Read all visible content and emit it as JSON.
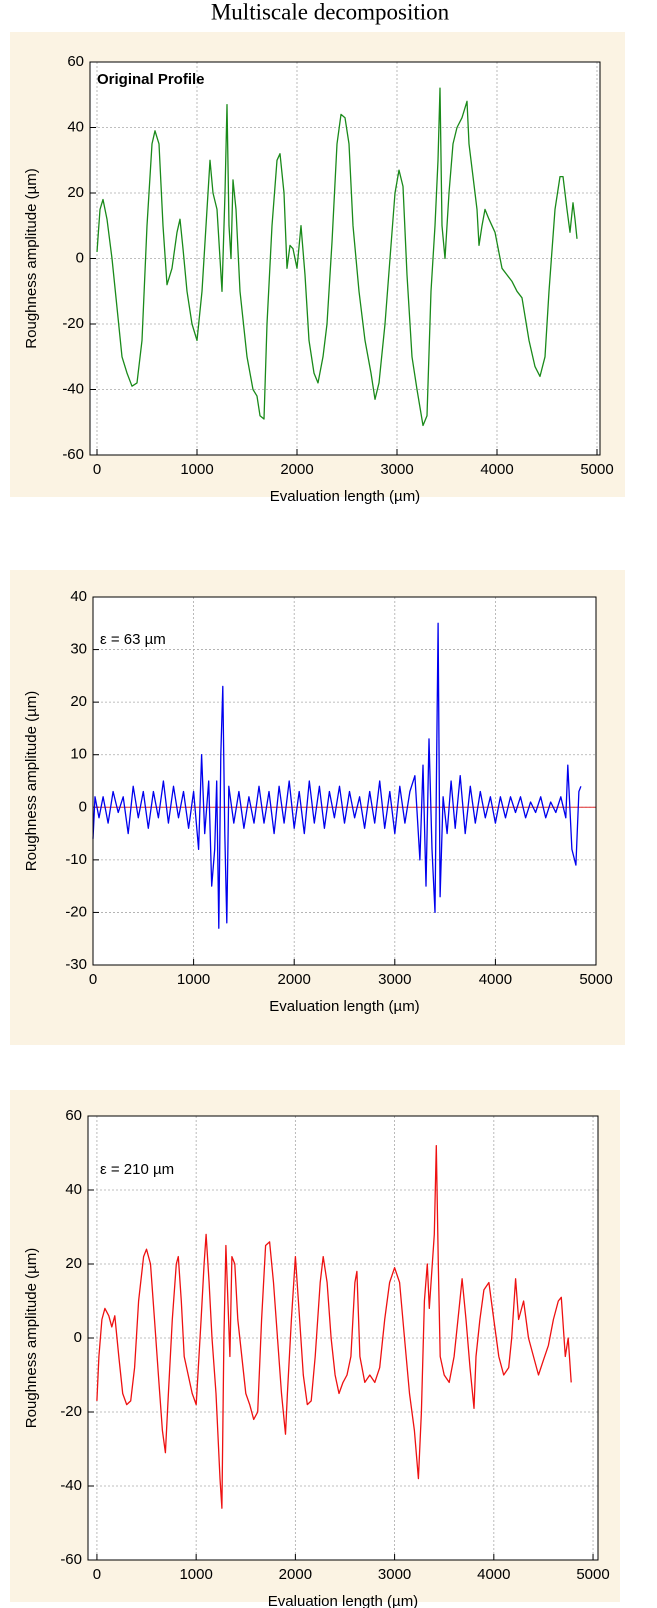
{
  "title": "Multiscale decomposition",
  "chart_data": [
    {
      "type": "line",
      "annotation": "Original Profile",
      "xlabel": "Evaluation length (µm)",
      "ylabel": "Roughness amplitude (µm)",
      "color": "#1a8a1a",
      "grid": true,
      "xlim": [
        -70,
        5030
      ],
      "ylim": [
        -60,
        60
      ],
      "xticks": [
        0,
        1000,
        2000,
        3000,
        4000,
        5000
      ],
      "yticks": [
        -60,
        -40,
        -20,
        0,
        20,
        40,
        60
      ],
      "x": [
        0,
        30,
        60,
        100,
        150,
        200,
        250,
        300,
        350,
        400,
        450,
        500,
        550,
        580,
        620,
        660,
        700,
        750,
        800,
        830,
        860,
        900,
        950,
        1000,
        1050,
        1100,
        1130,
        1160,
        1200,
        1250,
        1280,
        1300,
        1320,
        1340,
        1360,
        1390,
        1430,
        1500,
        1560,
        1600,
        1630,
        1670,
        1700,
        1750,
        1800,
        1830,
        1870,
        1900,
        1930,
        1960,
        2000,
        2040,
        2080,
        2120,
        2170,
        2210,
        2260,
        2300,
        2350,
        2400,
        2440,
        2480,
        2520,
        2560,
        2620,
        2680,
        2740,
        2780,
        2820,
        2880,
        2930,
        2980,
        3020,
        3060,
        3100,
        3150,
        3200,
        3260,
        3300,
        3340,
        3380,
        3410,
        3430,
        3450,
        3480,
        3520,
        3560,
        3600,
        3650,
        3700,
        3720,
        3760,
        3800,
        3820,
        3850,
        3880,
        3920,
        3980,
        4050,
        4100,
        4150,
        4200,
        4250,
        4320,
        4380,
        4430,
        4480,
        4520,
        4580,
        4630,
        4660,
        4700,
        4730,
        4760,
        4780,
        4800
      ],
      "values": [
        2,
        15,
        18,
        12,
        0,
        -15,
        -30,
        -35,
        -39,
        -38,
        -25,
        10,
        35,
        39,
        35,
        10,
        -8,
        -3,
        8,
        12,
        3,
        -10,
        -20,
        -25,
        -10,
        15,
        30,
        20,
        15,
        -10,
        20,
        47,
        10,
        0,
        24,
        15,
        -10,
        -30,
        -40,
        -42,
        -48,
        -49,
        -20,
        10,
        30,
        32,
        20,
        -3,
        4,
        3,
        -3,
        10,
        -5,
        -25,
        -35,
        -38,
        -30,
        -20,
        5,
        35,
        44,
        43,
        35,
        10,
        -10,
        -25,
        -35,
        -43,
        -38,
        -20,
        0,
        20,
        27,
        22,
        -5,
        -30,
        -40,
        -51,
        -48,
        -10,
        10,
        30,
        52,
        10,
        0,
        20,
        35,
        40,
        43,
        48,
        35,
        25,
        15,
        4,
        10,
        15,
        12,
        8,
        -3,
        -5,
        -7,
        -10,
        -12,
        -25,
        -33,
        -36,
        -30,
        -10,
        15,
        25,
        25,
        15,
        8,
        17,
        12,
        6
      ]
    },
    {
      "type": "line",
      "annotation": "ε = 63 µm",
      "xlabel": "Evaluation length (µm)",
      "ylabel": "Roughness amplitude (µm)",
      "color": "#0000ee",
      "grid": true,
      "hline": 0,
      "hline_color": "#e03030",
      "xlim": [
        0,
        5000
      ],
      "ylim": [
        -30,
        40
      ],
      "xticks": [
        0,
        1000,
        2000,
        3000,
        4000,
        5000
      ],
      "yticks": [
        -30,
        -20,
        -10,
        0,
        10,
        20,
        30,
        40
      ],
      "x": [
        0,
        20,
        60,
        100,
        150,
        200,
        250,
        300,
        350,
        400,
        450,
        500,
        550,
        600,
        650,
        700,
        750,
        800,
        850,
        900,
        950,
        1000,
        1050,
        1080,
        1110,
        1150,
        1180,
        1210,
        1230,
        1250,
        1270,
        1290,
        1310,
        1330,
        1350,
        1400,
        1450,
        1500,
        1550,
        1600,
        1650,
        1700,
        1750,
        1800,
        1850,
        1900,
        1950,
        2000,
        2050,
        2100,
        2150,
        2200,
        2250,
        2300,
        2350,
        2400,
        2450,
        2500,
        2550,
        2600,
        2650,
        2700,
        2750,
        2800,
        2850,
        2900,
        2950,
        3000,
        3050,
        3100,
        3150,
        3200,
        3250,
        3280,
        3310,
        3340,
        3370,
        3400,
        3430,
        3450,
        3480,
        3520,
        3560,
        3600,
        3650,
        3700,
        3750,
        3800,
        3850,
        3900,
        3950,
        4000,
        4050,
        4100,
        4150,
        4200,
        4250,
        4300,
        4350,
        4400,
        4450,
        4500,
        4550,
        4600,
        4650,
        4700,
        4720,
        4760,
        4800,
        4830,
        4850
      ],
      "values": [
        -6,
        2,
        -2,
        2,
        -3,
        3,
        -1,
        2,
        -5,
        4,
        -2,
        3,
        -4,
        3,
        -2,
        5,
        -3,
        4,
        -2,
        3,
        -4,
        3,
        -8,
        10,
        -5,
        5,
        -15,
        -8,
        5,
        -23,
        10,
        23,
        -5,
        -22,
        4,
        -3,
        3,
        -4,
        2,
        -3,
        4,
        -3,
        3,
        -5,
        4,
        -3,
        5,
        -4,
        3,
        -5,
        5,
        -3,
        4,
        -4,
        3,
        -2,
        4,
        -3,
        3,
        -2,
        2,
        -4,
        3,
        -3,
        5,
        -4,
        3,
        -5,
        4,
        -3,
        3,
        6,
        -10,
        8,
        -15,
        13,
        -8,
        -20,
        35,
        -17,
        2,
        -5,
        5,
        -4,
        6,
        -5,
        4,
        -3,
        3,
        -2,
        2,
        -3,
        2,
        -2,
        2,
        -1,
        2,
        -2,
        1,
        -1,
        2,
        -2,
        1,
        -1,
        2,
        -2,
        8,
        -8,
        -11,
        3,
        4
      ]
    },
    {
      "type": "line",
      "annotation": "ε = 210 µm",
      "xlabel": "Evaluation length (µm)",
      "ylabel": "Roughness amplitude (µm)",
      "color": "#ee1111",
      "grid": true,
      "xlim": [
        -90,
        5050
      ],
      "ylim": [
        -60,
        60
      ],
      "xticks": [
        0,
        1000,
        2000,
        3000,
        4000,
        5000
      ],
      "yticks": [
        -60,
        -40,
        -20,
        0,
        20,
        40,
        60
      ],
      "x": [
        0,
        20,
        50,
        80,
        120,
        150,
        180,
        220,
        260,
        300,
        340,
        380,
        420,
        470,
        500,
        540,
        580,
        620,
        660,
        690,
        720,
        760,
        800,
        820,
        850,
        880,
        920,
        960,
        1000,
        1050,
        1080,
        1100,
        1130,
        1160,
        1200,
        1240,
        1260,
        1280,
        1300,
        1320,
        1340,
        1360,
        1390,
        1420,
        1460,
        1500,
        1540,
        1580,
        1620,
        1660,
        1700,
        1740,
        1780,
        1820,
        1860,
        1900,
        1920,
        1960,
        2000,
        2030,
        2080,
        2120,
        2160,
        2200,
        2250,
        2280,
        2320,
        2360,
        2400,
        2440,
        2480,
        2520,
        2560,
        2600,
        2620,
        2650,
        2700,
        2750,
        2800,
        2850,
        2900,
        2950,
        3000,
        3050,
        3100,
        3150,
        3200,
        3240,
        3270,
        3300,
        3330,
        3350,
        3380,
        3400,
        3420,
        3440,
        3460,
        3500,
        3550,
        3600,
        3650,
        3680,
        3720,
        3760,
        3800,
        3820,
        3860,
        3900,
        3950,
        4000,
        4050,
        4100,
        4150,
        4180,
        4220,
        4250,
        4300,
        4350,
        4400,
        4450,
        4500,
        4550,
        4600,
        4650,
        4680,
        4720,
        4750,
        4780
      ],
      "values": [
        -17,
        -5,
        5,
        8,
        6,
        3,
        6,
        -5,
        -15,
        -18,
        -17,
        -8,
        10,
        22,
        24,
        20,
        5,
        -10,
        -25,
        -31,
        -15,
        5,
        20,
        22,
        10,
        -5,
        -10,
        -15,
        -18,
        5,
        20,
        28,
        15,
        0,
        -15,
        -38,
        -46,
        0,
        25,
        10,
        -5,
        22,
        20,
        5,
        -5,
        -15,
        -18,
        -22,
        -20,
        5,
        25,
        26,
        15,
        0,
        -15,
        -26,
        -15,
        5,
        22,
        10,
        -10,
        -18,
        -17,
        -5,
        15,
        22,
        15,
        0,
        -10,
        -15,
        -12,
        -10,
        -5,
        15,
        18,
        -5,
        -12,
        -10,
        -12,
        -8,
        5,
        15,
        19,
        15,
        0,
        -15,
        -25,
        -38,
        -20,
        10,
        20,
        8,
        20,
        28,
        52,
        20,
        -5,
        -10,
        -12,
        -5,
        8,
        16,
        5,
        -8,
        -19,
        -5,
        5,
        13,
        15,
        5,
        -5,
        -10,
        -8,
        0,
        16,
        5,
        10,
        0,
        -5,
        -10,
        -6,
        -2,
        5,
        10,
        11,
        -5,
        0,
        -12
      ]
    }
  ]
}
